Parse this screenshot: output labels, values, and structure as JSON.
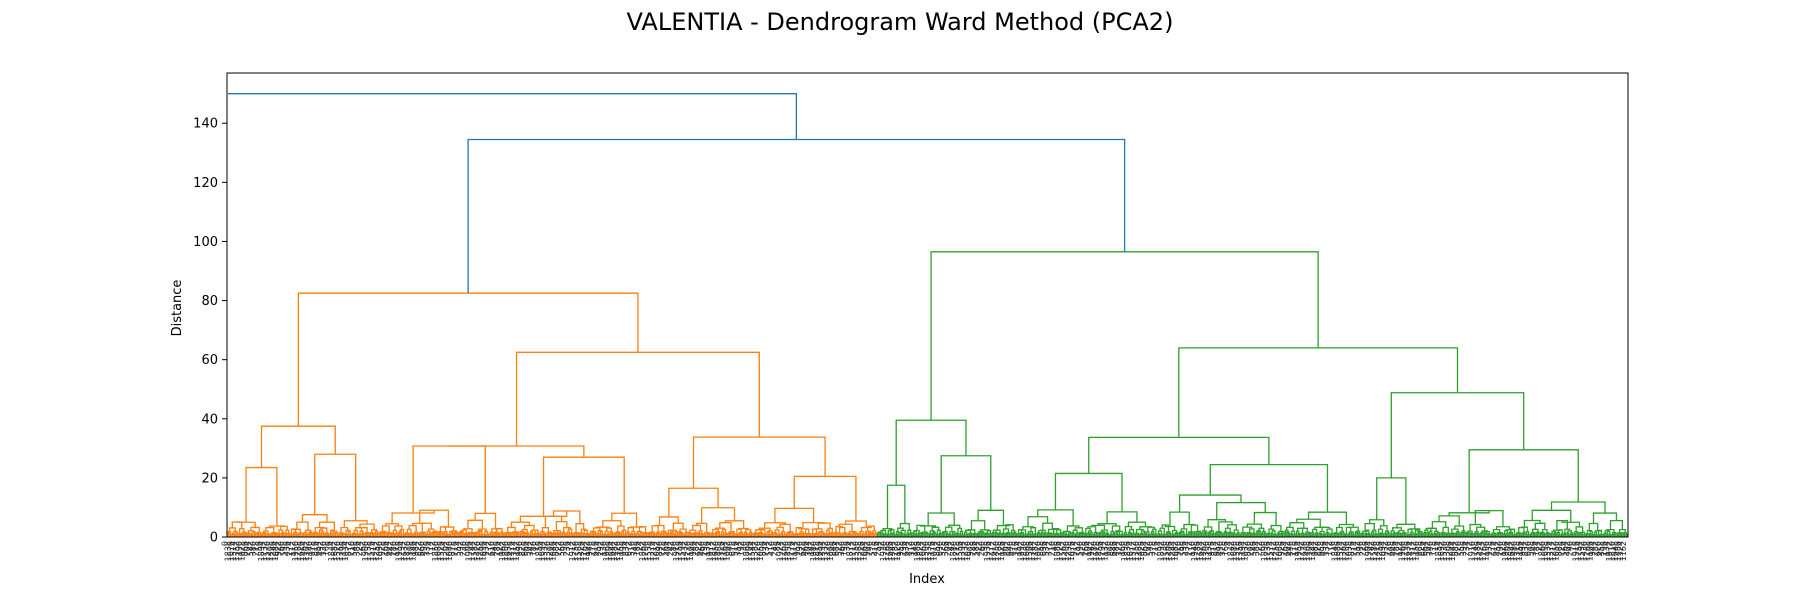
{
  "chart_data": {
    "type": "dendrogram",
    "title": "VALENTIA - Dendrogram Ward Method (PCA2)",
    "xlabel": "Index",
    "ylabel": "Distance",
    "ylim": [
      0,
      157
    ],
    "yticks": [
      0,
      20,
      40,
      60,
      80,
      100,
      120,
      140
    ],
    "grid": false,
    "colors": {
      "root_links": "#1f77b4",
      "cluster_1": "#ff7f0e",
      "cluster_2": "#2ca02c",
      "axes": "#000000"
    },
    "leaf_count": 1000,
    "leaf_counts_by_cluster": [
      464,
      536
    ],
    "merges": [
      {
        "name": "root",
        "height": 150,
        "color": "#1f77b4",
        "children": [
          "cluster_1",
          "right_group"
        ]
      },
      {
        "name": "right_group",
        "height": 134.5,
        "color": "#1f77b4",
        "children": [
          "cluster_1_top",
          "cluster_2_top"
        ]
      },
      {
        "name": "cluster_1_top",
        "height": 82.5,
        "color": "#ff7f0e"
      },
      {
        "name": "cluster_2_top",
        "height": 96.5,
        "color": "#2ca02c"
      },
      {
        "name": "c1_left",
        "height": 37.5,
        "color": "#ff7f0e"
      },
      {
        "name": "c1_right",
        "height": 62.5,
        "color": "#ff7f0e"
      },
      {
        "name": "c1_right_a",
        "height": 30.8,
        "color": "#ff7f0e"
      },
      {
        "name": "c1_right_b",
        "height": 33.8,
        "color": "#ff7f0e"
      },
      {
        "name": "c2_left",
        "height": 39.5,
        "color": "#2ca02c"
      },
      {
        "name": "c2_right",
        "height": 64,
        "color": "#2ca02c"
      },
      {
        "name": "c2_right_a",
        "height": 33.7,
        "color": "#2ca02c"
      },
      {
        "name": "c2_right_b",
        "height": 48.8,
        "color": "#2ca02c"
      }
    ]
  }
}
